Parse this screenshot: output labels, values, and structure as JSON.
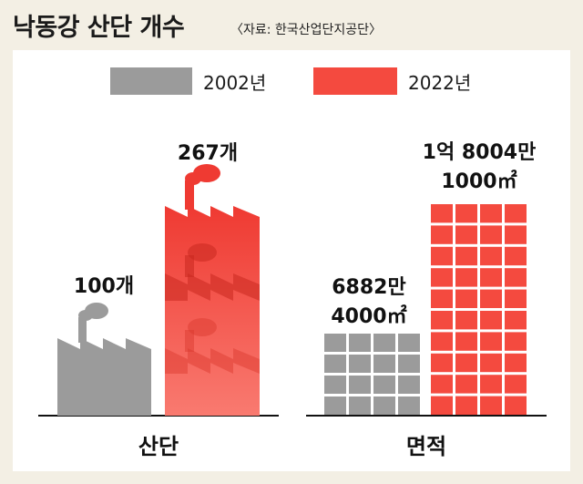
{
  "header": {
    "title": "낙동강 산단 개수",
    "source": "〈자료: 한국산업단지공단〉"
  },
  "colors": {
    "y2002": "#9b9b9b",
    "y2022": "#f44a3f",
    "y2022_light": "#f8675c"
  },
  "chart_data": {
    "type": "bar",
    "categories": [
      "산단",
      "면적"
    ],
    "series": [
      {
        "name": "2002년",
        "values": [
          100,
          68824000
        ],
        "labels": [
          "100개",
          "6882만 4000㎡"
        ]
      },
      {
        "name": "2022년",
        "values": [
          267,
          180041000
        ],
        "labels": [
          "267개",
          "1억 8004만 1000㎡"
        ]
      }
    ],
    "legend": {
      "placement": "top-center",
      "entries": [
        "2002년",
        "2022년"
      ]
    }
  }
}
